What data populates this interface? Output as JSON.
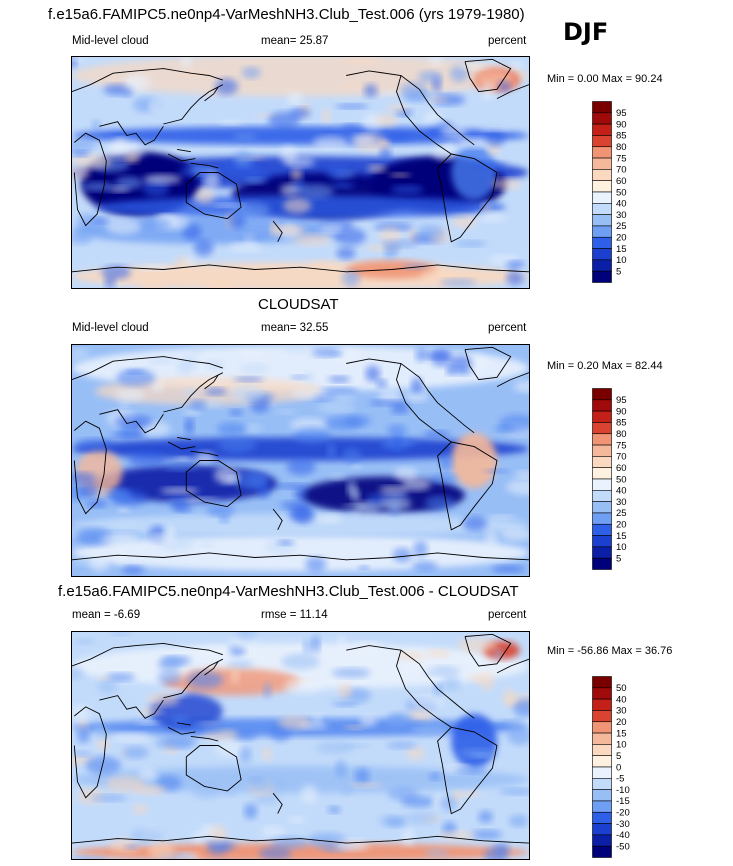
{
  "season": "DJF",
  "palettes": {
    "abs": [
      "#00007a",
      "#0b1fa6",
      "#1b3fcf",
      "#2d5fe8",
      "#4a7ff0",
      "#6f9ff3",
      "#98bef6",
      "#c3dbfa",
      "#eaf2fd",
      "#fff1e0",
      "#fbd9c0",
      "#f5b89a",
      "#f09474",
      "#e76b4f",
      "#d9432f",
      "#c42018",
      "#a10a0a",
      "#7a0000"
    ],
    "diff": [
      "#00007a",
      "#0b1fa6",
      "#1b3fcf",
      "#2d5fe8",
      "#4a7ff0",
      "#6f9ff3",
      "#98bef6",
      "#c3dbfa",
      "#eaf2fd",
      "#fff1e0",
      "#fbd9c0",
      "#f5b89a",
      "#f09474",
      "#e76b4f",
      "#d9432f",
      "#c42018",
      "#a10a0a",
      "#7a0000"
    ]
  },
  "panels": [
    {
      "title": "f.e15a6.FAMIPC5.ne0np4-VarMeshNH3.Club_Test.006 (yrs 1979-1980)",
      "left_label": "Mid-level cloud",
      "mid_label": "mean=  25.87",
      "right_label": "percent",
      "minmax": "Min =   0.00 Max =  90.24",
      "map_name": "model-cloud-map",
      "colorbar": {
        "palette": "abs",
        "labels": [
          "95",
          "90",
          "85",
          "80",
          "75",
          "70",
          "60",
          "50",
          "40",
          "30",
          "25",
          "20",
          "15",
          "10",
          "5"
        ]
      }
    },
    {
      "title": "CLOUDSAT",
      "left_label": "Mid-level cloud",
      "mid_label": "mean=  32.55",
      "right_label": "percent",
      "minmax": "Min =   0.20 Max =  82.44",
      "map_name": "cloudsat-cloud-map",
      "colorbar": {
        "palette": "abs",
        "labels": [
          "95",
          "90",
          "85",
          "80",
          "75",
          "70",
          "60",
          "50",
          "40",
          "30",
          "25",
          "20",
          "15",
          "10",
          "5"
        ]
      }
    },
    {
      "title": "f.e15a6.FAMIPC5.ne0np4-VarMeshNH3.Club_Test.006 - CLOUDSAT",
      "left_label": "mean =  -6.69",
      "mid_label": "rmse =  11.14",
      "right_label": "percent",
      "minmax": "Min = -56.86 Max =  36.76",
      "map_name": "difference-map",
      "colorbar": {
        "palette": "diff",
        "labels": [
          "50",
          "40",
          "30",
          "20",
          "15",
          "10",
          "5",
          "0",
          "-5",
          "-10",
          "-15",
          "-20",
          "-30",
          "-40",
          "-50"
        ]
      }
    }
  ]
}
